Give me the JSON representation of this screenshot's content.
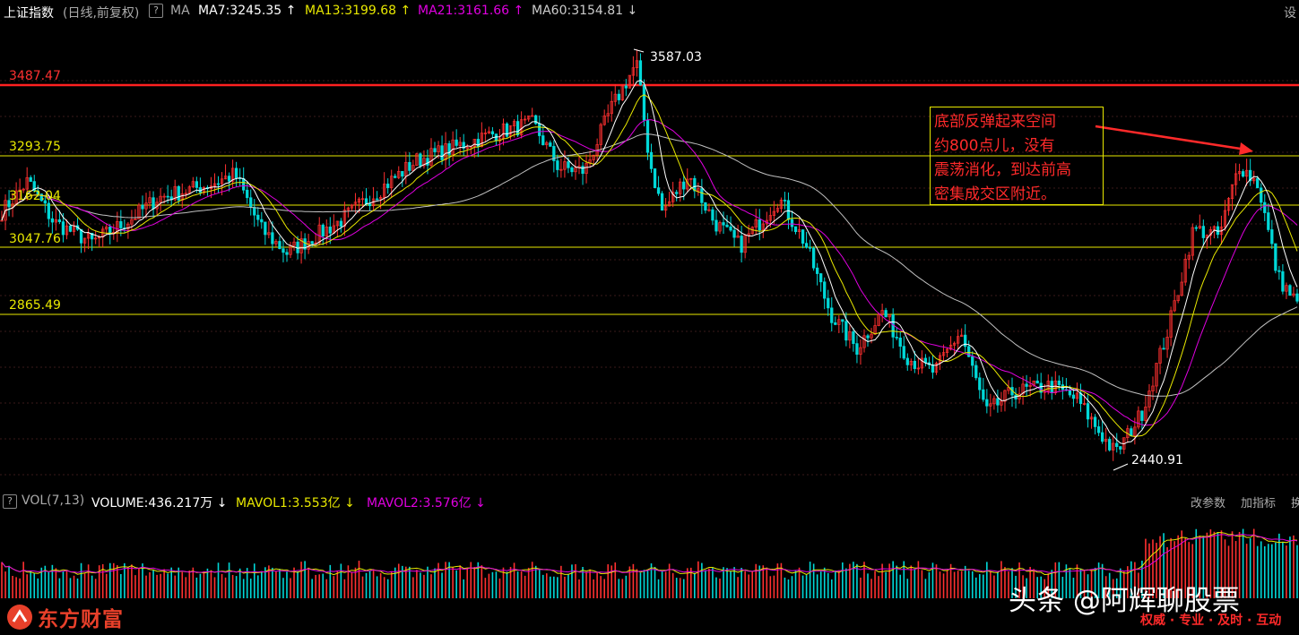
{
  "header": {
    "index_name": "上证指数",
    "mode": "(日线,前复权)",
    "ma_label": "MA",
    "ma7": "MA7:3245.35",
    "ma13": "MA13:3199.68",
    "ma21": "MA21:3161.66",
    "ma60": "MA60:3154.81",
    "settings": "设",
    "help_icon": "?"
  },
  "colors": {
    "ma7": "#ffffff",
    "ma13": "#e8e800",
    "ma21": "#e000e0",
    "ma60": "#c0c0c0",
    "up": "#ff3030",
    "down": "#00d8d8",
    "level": "#e8e800",
    "resistance": "#ff2020",
    "annotation": "#ff2a2a"
  },
  "levels": [
    {
      "value": "3487.47",
      "kind": "red"
    },
    {
      "value": "3293.75",
      "kind": "yellow"
    },
    {
      "value": "3162.04",
      "kind": "yellow"
    },
    {
      "value": "3047.76",
      "kind": "yellow"
    },
    {
      "value": "2865.49",
      "kind": "yellow"
    }
  ],
  "peak_label": "3587.03",
  "trough_label": "2440.91",
  "annotation": {
    "lines": [
      "底部反弹起来空间",
      "约800点儿，没有",
      "震荡消化，到达前高",
      "密集成交区附近。"
    ]
  },
  "volume_header": {
    "help_icon": "?",
    "vol_label": "VOL(7,13)",
    "volume": "VOLUME:436.217万",
    "mavol1": "MAVOL1:3.553亿",
    "mavol2": "MAVOL2:3.576亿",
    "params": "改参数",
    "add_indicator": "加指标",
    "more": "换"
  },
  "footer": {
    "logo": "东方财富",
    "watermark": "头条 @阿辉聊股票",
    "tagline": "权威 · 专业 · 及时 · 互动"
  },
  "chart_data": {
    "type": "line",
    "description_units": "index points",
    "y_levels": [
      3487.47,
      3293.75,
      3162.04,
      3047.76,
      2865.49
    ],
    "peak": 3587.03,
    "trough": 2440.91,
    "price_path": [
      {
        "x": 0,
        "y": 3150
      },
      {
        "x": 0.02,
        "y": 3240
      },
      {
        "x": 0.04,
        "y": 3120
      },
      {
        "x": 0.07,
        "y": 3060
      },
      {
        "x": 0.1,
        "y": 3130
      },
      {
        "x": 0.12,
        "y": 3190
      },
      {
        "x": 0.16,
        "y": 3230
      },
      {
        "x": 0.18,
        "y": 3260
      },
      {
        "x": 0.2,
        "y": 3100
      },
      {
        "x": 0.22,
        "y": 3030
      },
      {
        "x": 0.26,
        "y": 3120
      },
      {
        "x": 0.29,
        "y": 3210
      },
      {
        "x": 0.32,
        "y": 3300
      },
      {
        "x": 0.35,
        "y": 3340
      },
      {
        "x": 0.38,
        "y": 3380
      },
      {
        "x": 0.41,
        "y": 3410
      },
      {
        "x": 0.43,
        "y": 3280
      },
      {
        "x": 0.45,
        "y": 3270
      },
      {
        "x": 0.47,
        "y": 3450
      },
      {
        "x": 0.49,
        "y": 3587
      },
      {
        "x": 0.5,
        "y": 3300
      },
      {
        "x": 0.51,
        "y": 3150
      },
      {
        "x": 0.53,
        "y": 3260
      },
      {
        "x": 0.55,
        "y": 3120
      },
      {
        "x": 0.57,
        "y": 3050
      },
      {
        "x": 0.6,
        "y": 3190
      },
      {
        "x": 0.62,
        "y": 3060
      },
      {
        "x": 0.64,
        "y": 2850
      },
      {
        "x": 0.66,
        "y": 2750
      },
      {
        "x": 0.68,
        "y": 2860
      },
      {
        "x": 0.7,
        "y": 2720
      },
      {
        "x": 0.72,
        "y": 2680
      },
      {
        "x": 0.74,
        "y": 2800
      },
      {
        "x": 0.76,
        "y": 2560
      },
      {
        "x": 0.78,
        "y": 2620
      },
      {
        "x": 0.81,
        "y": 2640
      },
      {
        "x": 0.83,
        "y": 2600
      },
      {
        "x": 0.85,
        "y": 2490
      },
      {
        "x": 0.86,
        "y": 2441
      },
      {
        "x": 0.88,
        "y": 2560
      },
      {
        "x": 0.9,
        "y": 2800
      },
      {
        "x": 0.92,
        "y": 3100
      },
      {
        "x": 0.94,
        "y": 3080
      },
      {
        "x": 0.955,
        "y": 3290
      },
      {
        "x": 0.97,
        "y": 3230
      },
      {
        "x": 0.985,
        "y": 2960
      },
      {
        "x": 1.0,
        "y": 2880
      }
    ]
  }
}
